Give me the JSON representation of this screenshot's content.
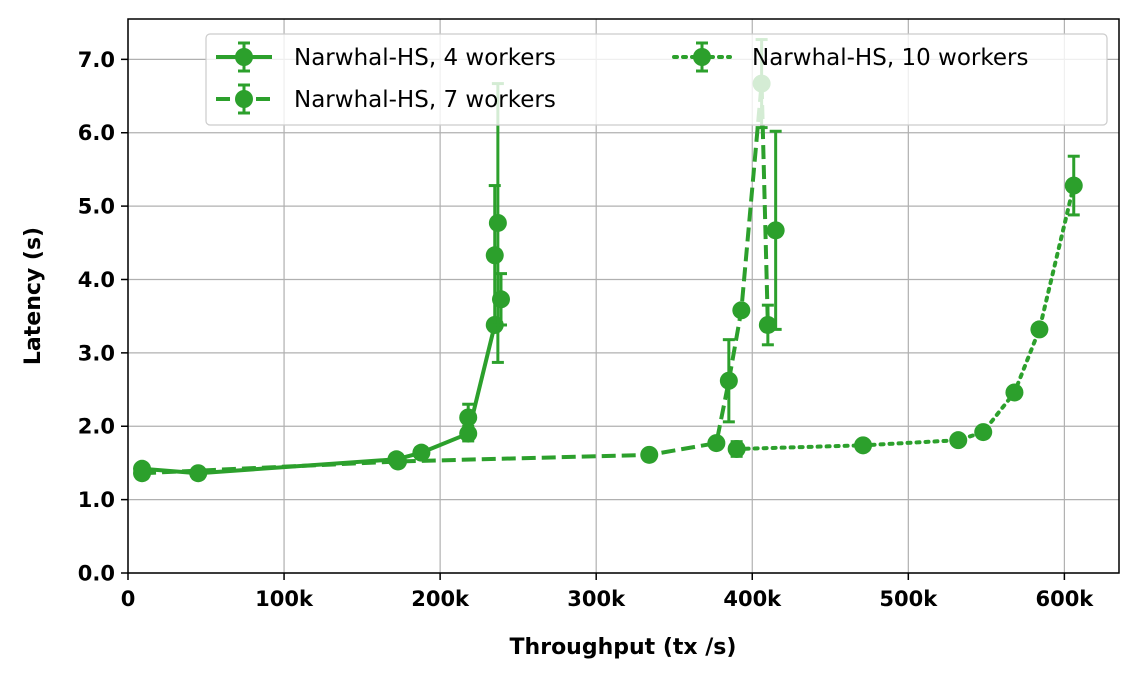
{
  "chart_data": {
    "type": "line",
    "xlabel": "Throughput (tx /s)",
    "ylabel": "Latency (s)",
    "xlim": [
      0,
      635000
    ],
    "ylim": [
      0,
      7.55
    ],
    "x_ticks": [
      0,
      100000,
      200000,
      300000,
      400000,
      500000,
      600000
    ],
    "x_tick_labels": [
      "0",
      "100k",
      "200k",
      "300k",
      "400k",
      "500k",
      "600k"
    ],
    "y_ticks": [
      0,
      1,
      2,
      3,
      4,
      5,
      6,
      7
    ],
    "y_tick_labels": [
      "0.0",
      "1.0",
      "2.0",
      "3.0",
      "4.0",
      "5.0",
      "6.0",
      "7.0"
    ],
    "grid": true,
    "legend_position": "top",
    "color": "#2ca02c",
    "series": [
      {
        "name": "Narwhal-HS, 4 workers",
        "linestyle": "solid",
        "points": [
          {
            "x": 9000,
            "y": 1.42,
            "err": 0.03
          },
          {
            "x": 45000,
            "y": 1.36,
            "err": 0.02
          },
          {
            "x": 172000,
            "y": 1.55,
            "err": 0.02
          },
          {
            "x": 188000,
            "y": 1.64,
            "err": 0.03
          },
          {
            "x": 218000,
            "y": 1.9,
            "err": 0.1
          },
          {
            "x": 235000,
            "y": 3.38,
            "err": 0.02
          }
        ]
      },
      {
        "name": "Narwhal-HS, 7 workers",
        "linestyle": "dashed",
        "points": [
          {
            "x": 9000,
            "y": 1.36,
            "err": 0.02
          },
          {
            "x": 173000,
            "y": 1.52,
            "err": 0.02
          },
          {
            "x": 334000,
            "y": 1.61,
            "err": 0.02
          },
          {
            "x": 377000,
            "y": 1.77,
            "err": 0.03
          },
          {
            "x": 385000,
            "y": 2.62,
            "err": 0.56
          },
          {
            "x": 393000,
            "y": 3.58,
            "err": 0.03
          },
          {
            "x": 406000,
            "y": 6.67,
            "err": 0.6
          },
          {
            "x": 410000,
            "y": 3.38,
            "err": 0.27
          }
        ]
      },
      {
        "name": "Narwhal-HS, 10 workers",
        "linestyle": "dotted",
        "points": [
          {
            "x": 390000,
            "y": 1.69,
            "err": 0.1
          },
          {
            "x": 471000,
            "y": 1.74,
            "err": 0.03
          },
          {
            "x": 532000,
            "y": 1.81,
            "err": 0.03
          },
          {
            "x": 548000,
            "y": 1.92,
            "err": 0.03
          },
          {
            "x": 568000,
            "y": 2.46,
            "err": 0.03
          },
          {
            "x": 584000,
            "y": 3.32,
            "err": 0.03
          },
          {
            "x": 606000,
            "y": 5.28,
            "err": 0.4
          }
        ]
      }
    ],
    "extra_points": [
      {
        "x": 218000,
        "y": 2.12,
        "err": 0.18
      },
      {
        "x": 235000,
        "y": 4.33,
        "err": 0.95
      },
      {
        "x": 237000,
        "y": 4.77,
        "err": 1.9
      },
      {
        "x": 239000,
        "y": 3.73,
        "err": 0.35
      },
      {
        "x": 415000,
        "y": 4.67,
        "err": 1.35
      }
    ]
  }
}
